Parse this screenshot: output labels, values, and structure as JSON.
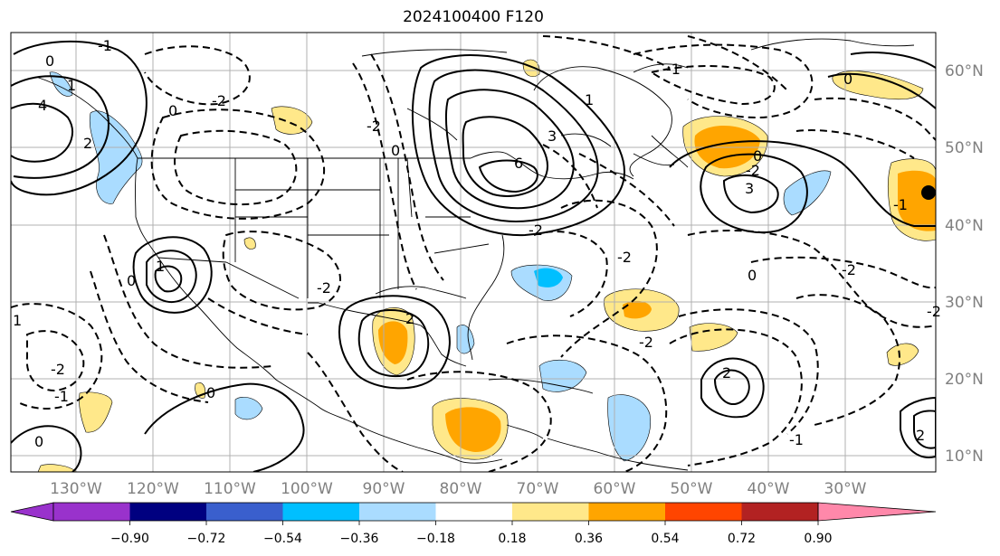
{
  "title": "2024100400 F120",
  "lat_labels": [
    "60°N",
    "50°N",
    "40°N",
    "30°N",
    "20°N",
    "10°N"
  ],
  "lon_labels": [
    "130°W",
    "120°W",
    "110°W",
    "100°W",
    "90°W",
    "80°W",
    "70°W",
    "60°W",
    "50°W",
    "40°W",
    "30°W"
  ],
  "colorbar": {
    "colors": [
      "#9932cc",
      "#000080",
      "#3a5fcd",
      "#00bfff",
      "#aadcff",
      "#ffffff",
      "#ffe88a",
      "#ffa500",
      "#ff4500",
      "#b22222",
      "#ff88aa"
    ],
    "tick_labels": [
      "−0.90",
      "−0.72",
      "−0.54",
      "−0.36",
      "−0.18",
      "0.18",
      "0.36",
      "0.54",
      "0.72",
      "0.90"
    ]
  },
  "contour_labels": [
    "0",
    "-1",
    "1",
    "4",
    "2",
    "0",
    "-2",
    "1",
    "6",
    "3",
    "-2",
    "0",
    "-2",
    "-1",
    "-2",
    "1",
    "0",
    "2",
    "3",
    "-2",
    "0",
    "-1",
    "-2",
    "0",
    "-2",
    "2",
    "-2",
    "-1",
    "0",
    "-2",
    "-2",
    "1",
    "0",
    "-1",
    "2",
    "0"
  ]
}
